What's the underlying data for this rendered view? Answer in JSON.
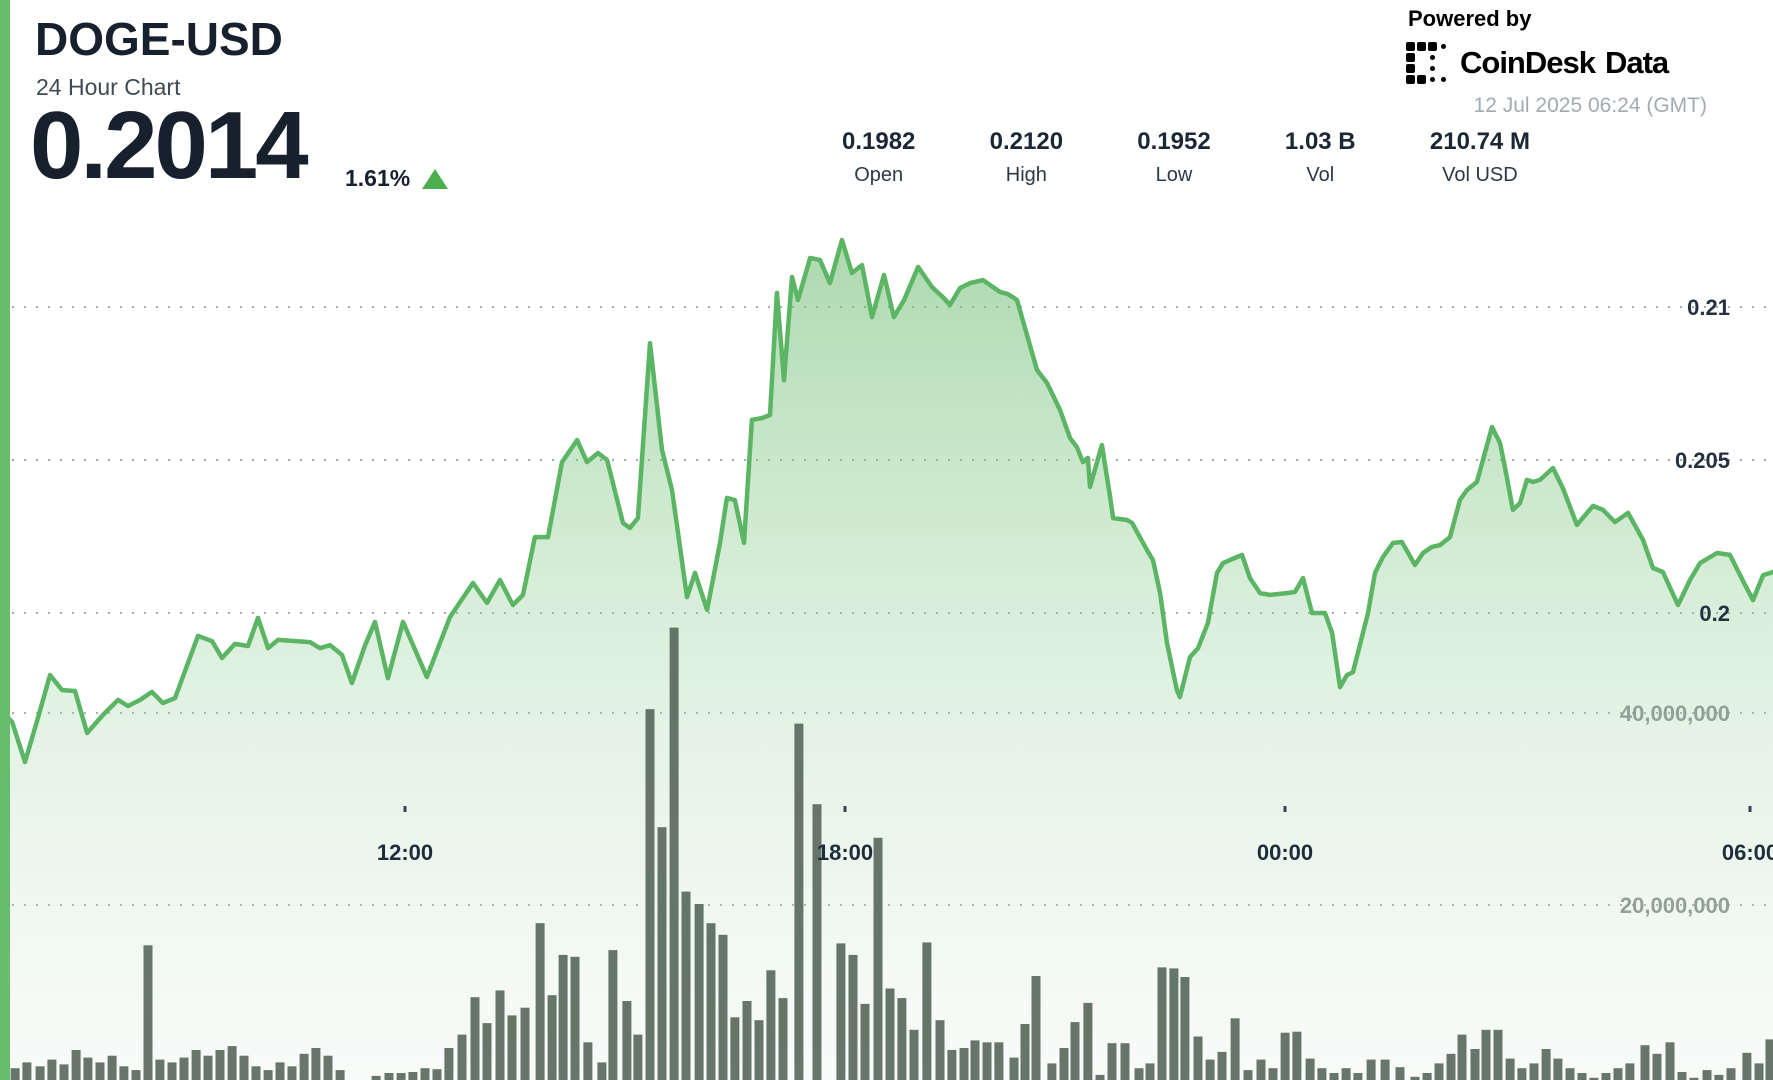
{
  "header": {
    "symbol": "DOGE-USD",
    "subtitle": "24 Hour Chart",
    "price": "0.2014",
    "change_pct": "1.61%",
    "change_direction": "up",
    "accent_color": "#67bd6a",
    "up_color": "#4caf50"
  },
  "branding": {
    "powered_by": "Powered by",
    "logo_name": "CoinDesk",
    "logo_suffix": "Data",
    "timestamp": "12 Jul 2025 06:24 (GMT)"
  },
  "stats": [
    {
      "key": "open",
      "value": "0.1982",
      "label": "Open"
    },
    {
      "key": "high",
      "value": "0.2120",
      "label": "High"
    },
    {
      "key": "low",
      "value": "0.1952",
      "label": "Low"
    },
    {
      "key": "vol",
      "value": "1.03 B",
      "label": "Vol"
    },
    {
      "key": "vol-usd",
      "value": "210.74 M",
      "label": "Vol USD"
    }
  ],
  "chart_data": [
    {
      "type": "area",
      "name": "price",
      "title": "DOGE-USD 24 Hour Chart",
      "x_window": "24 hours ending 12 Jul 2025 06:24 GMT",
      "x_tick_labels": [
        "12:00",
        "18:00",
        "00:00",
        "06:00"
      ],
      "y_ticks": [
        0.21,
        0.205,
        0.2
      ],
      "ylim": [
        0.1945,
        0.2125
      ],
      "grid": "dotted",
      "legend": "none",
      "line_color": "#5cb564",
      "points": [
        [
          0.0,
          0.19683
        ],
        [
          0.0068,
          0.19644
        ],
        [
          0.0141,
          0.19513
        ],
        [
          0.0214,
          0.19657
        ],
        [
          0.0282,
          0.19797
        ],
        [
          0.035,
          0.19748
        ],
        [
          0.0423,
          0.19745
        ],
        [
          0.0491,
          0.19608
        ],
        [
          0.0581,
          0.19667
        ],
        [
          0.0666,
          0.19716
        ],
        [
          0.0722,
          0.19696
        ],
        [
          0.079,
          0.19716
        ],
        [
          0.0857,
          0.19742
        ],
        [
          0.0919,
          0.19706
        ],
        [
          0.0987,
          0.19722
        ],
        [
          0.1117,
          0.19925
        ],
        [
          0.1196,
          0.19908
        ],
        [
          0.1252,
          0.19853
        ],
        [
          0.1325,
          0.19899
        ],
        [
          0.1399,
          0.19892
        ],
        [
          0.1455,
          0.19984
        ],
        [
          0.1512,
          0.19885
        ],
        [
          0.1568,
          0.19912
        ],
        [
          0.1748,
          0.19905
        ],
        [
          0.1805,
          0.19885
        ],
        [
          0.1861,
          0.19895
        ],
        [
          0.1929,
          0.19863
        ],
        [
          0.1985,
          0.19771
        ],
        [
          0.2059,
          0.19895
        ],
        [
          0.2115,
          0.19971
        ],
        [
          0.2188,
          0.19787
        ],
        [
          0.2273,
          0.19971
        ],
        [
          0.2408,
          0.19791
        ],
        [
          0.2538,
          0.19987
        ],
        [
          0.2668,
          0.20098
        ],
        [
          0.2747,
          0.20033
        ],
        [
          0.282,
          0.20108
        ],
        [
          0.2893,
          0.20026
        ],
        [
          0.295,
          0.20059
        ],
        [
          0.3017,
          0.20248
        ],
        [
          0.3091,
          0.20248
        ],
        [
          0.317,
          0.20493
        ],
        [
          0.3255,
          0.20565
        ],
        [
          0.3311,
          0.20493
        ],
        [
          0.3373,
          0.20523
        ],
        [
          0.3424,
          0.205
        ],
        [
          0.3514,
          0.20294
        ],
        [
          0.3553,
          0.20278
        ],
        [
          0.3598,
          0.2031
        ],
        [
          0.3666,
          0.20882
        ],
        [
          0.3734,
          0.20533
        ],
        [
          0.379,
          0.20402
        ],
        [
          0.3875,
          0.20052
        ],
        [
          0.392,
          0.20131
        ],
        [
          0.3988,
          0.2001
        ],
        [
          0.4061,
          0.20229
        ],
        [
          0.41,
          0.20376
        ],
        [
          0.4145,
          0.20369
        ],
        [
          0.4196,
          0.20229
        ],
        [
          0.4241,
          0.20631
        ],
        [
          0.4298,
          0.20637
        ],
        [
          0.4343,
          0.20647
        ],
        [
          0.4382,
          0.21046
        ],
        [
          0.4422,
          0.20761
        ],
        [
          0.4467,
          0.21098
        ],
        [
          0.4501,
          0.21023
        ],
        [
          0.4569,
          0.2116
        ],
        [
          0.4625,
          0.21154
        ],
        [
          0.4681,
          0.21078
        ],
        [
          0.4749,
          0.21219
        ],
        [
          0.4805,
          0.21111
        ],
        [
          0.4862,
          0.21137
        ],
        [
          0.4918,
          0.20967
        ],
        [
          0.4986,
          0.21105
        ],
        [
          0.5042,
          0.20967
        ],
        [
          0.5099,
          0.21023
        ],
        [
          0.5178,
          0.21131
        ],
        [
          0.5257,
          0.21065
        ],
        [
          0.5324,
          0.21029
        ],
        [
          0.5358,
          0.21007
        ],
        [
          0.5415,
          0.21062
        ],
        [
          0.5471,
          0.21078
        ],
        [
          0.5544,
          0.21088
        ],
        [
          0.564,
          0.21049
        ],
        [
          0.5685,
          0.21042
        ],
        [
          0.5736,
          0.21023
        ],
        [
          0.5849,
          0.20794
        ],
        [
          0.5905,
          0.20752
        ],
        [
          0.5979,
          0.20663
        ],
        [
          0.6035,
          0.20572
        ],
        [
          0.6074,
          0.20542
        ],
        [
          0.6108,
          0.20493
        ],
        [
          0.6136,
          0.20507
        ],
        [
          0.6148,
          0.20412
        ],
        [
          0.6215,
          0.20549
        ],
        [
          0.6261,
          0.20379
        ],
        [
          0.6278,
          0.2031
        ],
        [
          0.6357,
          0.20304
        ],
        [
          0.6385,
          0.20294
        ],
        [
          0.6469,
          0.20206
        ],
        [
          0.6503,
          0.20173
        ],
        [
          0.6543,
          0.20065
        ],
        [
          0.6582,
          0.19902
        ],
        [
          0.6638,
          0.19748
        ],
        [
          0.6655,
          0.19725
        ],
        [
          0.6712,
          0.19856
        ],
        [
          0.6757,
          0.19885
        ],
        [
          0.6813,
          0.19967
        ],
        [
          0.6864,
          0.20131
        ],
        [
          0.6898,
          0.20163
        ],
        [
          0.6977,
          0.20183
        ],
        [
          0.7005,
          0.2019
        ],
        [
          0.705,
          0.20114
        ],
        [
          0.7107,
          0.20065
        ],
        [
          0.7163,
          0.20059
        ],
        [
          0.7259,
          0.20065
        ],
        [
          0.7304,
          0.20069
        ],
        [
          0.7349,
          0.20114
        ],
        [
          0.74,
          0.2
        ],
        [
          0.7473,
          0.2
        ],
        [
          0.7513,
          0.19935
        ],
        [
          0.7558,
          0.19758
        ],
        [
          0.7597,
          0.19797
        ],
        [
          0.7631,
          0.19807
        ],
        [
          0.7716,
          0.2
        ],
        [
          0.7755,
          0.20131
        ],
        [
          0.78,
          0.20183
        ],
        [
          0.7857,
          0.20229
        ],
        [
          0.7907,
          0.20232
        ],
        [
          0.7981,
          0.20157
        ],
        [
          0.8026,
          0.20196
        ],
        [
          0.8076,
          0.20216
        ],
        [
          0.8122,
          0.20222
        ],
        [
          0.8178,
          0.20248
        ],
        [
          0.8234,
          0.20369
        ],
        [
          0.8274,
          0.20402
        ],
        [
          0.833,
          0.20428
        ],
        [
          0.8415,
          0.20608
        ],
        [
          0.846,
          0.20556
        ],
        [
          0.8488,
          0.20477
        ],
        [
          0.8533,
          0.20337
        ],
        [
          0.8573,
          0.20359
        ],
        [
          0.8612,
          0.20435
        ],
        [
          0.8646,
          0.20428
        ],
        [
          0.8686,
          0.20435
        ],
        [
          0.8759,
          0.20474
        ],
        [
          0.8815,
          0.20408
        ],
        [
          0.8894,
          0.20288
        ],
        [
          0.8985,
          0.2035
        ],
        [
          0.9041,
          0.20337
        ],
        [
          0.9109,
          0.20297
        ],
        [
          0.9182,
          0.20327
        ],
        [
          0.9267,
          0.20239
        ],
        [
          0.9323,
          0.20147
        ],
        [
          0.9379,
          0.20134
        ],
        [
          0.9464,
          0.20026
        ],
        [
          0.9532,
          0.20108
        ],
        [
          0.9588,
          0.20163
        ],
        [
          0.9684,
          0.20196
        ],
        [
          0.9757,
          0.2019
        ],
        [
          0.9842,
          0.20092
        ],
        [
          0.9887,
          0.20042
        ],
        [
          0.9944,
          0.20124
        ],
        [
          1.0,
          0.20134
        ]
      ]
    },
    {
      "type": "bar",
      "name": "volume",
      "units": "millions",
      "y_ticks": [
        40000000,
        20000000
      ],
      "bar_color": "#5b6a5e",
      "bars": [
        [
          0.0017,
          5.5
        ],
        [
          0.0085,
          3.0
        ],
        [
          0.0152,
          3.6
        ],
        [
          0.0226,
          3.2
        ],
        [
          0.0293,
          3.9
        ],
        [
          0.0361,
          3.4
        ],
        [
          0.0429,
          4.9
        ],
        [
          0.0496,
          4.1
        ],
        [
          0.0564,
          3.6
        ],
        [
          0.0632,
          4.3
        ],
        [
          0.0699,
          3.2
        ],
        [
          0.0767,
          2.8
        ],
        [
          0.0835,
          15.8
        ],
        [
          0.0902,
          3.9
        ],
        [
          0.097,
          3.6
        ],
        [
          0.1038,
          4.1
        ],
        [
          0.1106,
          4.9
        ],
        [
          0.1173,
          4.3
        ],
        [
          0.1241,
          4.9
        ],
        [
          0.1309,
          5.3
        ],
        [
          0.1376,
          4.3
        ],
        [
          0.1444,
          3.2
        ],
        [
          0.1512,
          2.8
        ],
        [
          0.1579,
          3.6
        ],
        [
          0.1647,
          3.2
        ],
        [
          0.1715,
          4.5
        ],
        [
          0.1782,
          5.1
        ],
        [
          0.185,
          4.3
        ],
        [
          0.1918,
          2.8
        ],
        [
          0.1985,
          1.0
        ],
        [
          0.2053,
          1.1
        ],
        [
          0.2121,
          2.2
        ],
        [
          0.2194,
          2.5
        ],
        [
          0.2262,
          2.5
        ],
        [
          0.2329,
          2.6
        ],
        [
          0.2397,
          3.0
        ],
        [
          0.2465,
          2.9
        ],
        [
          0.2532,
          5.1
        ],
        [
          0.2606,
          6.5
        ],
        [
          0.2679,
          10.4
        ],
        [
          0.2747,
          7.7
        ],
        [
          0.282,
          11.1
        ],
        [
          0.2888,
          8.5
        ],
        [
          0.2961,
          9.3
        ],
        [
          0.3046,
          18.1
        ],
        [
          0.3114,
          10.6
        ],
        [
          0.3176,
          14.8
        ],
        [
          0.3243,
          14.6
        ],
        [
          0.3316,
          5.7
        ],
        [
          0.3395,
          3.6
        ],
        [
          0.3457,
          15.3
        ],
        [
          0.3536,
          10.0
        ],
        [
          0.3598,
          6.5
        ],
        [
          0.3666,
          40.4
        ],
        [
          0.3734,
          28.1
        ],
        [
          0.3802,
          48.9
        ],
        [
          0.3869,
          21.4
        ],
        [
          0.3943,
          20.1
        ],
        [
          0.401,
          18.1
        ],
        [
          0.4078,
          16.9
        ],
        [
          0.4145,
          8.3
        ],
        [
          0.4213,
          10.0
        ],
        [
          0.4281,
          8.0
        ],
        [
          0.4348,
          13.2
        ],
        [
          0.4416,
          10.3
        ],
        [
          0.4506,
          38.9
        ],
        [
          0.4608,
          30.5
        ],
        [
          0.4743,
          16.0
        ],
        [
          0.4811,
          14.8
        ],
        [
          0.4879,
          9.7
        ],
        [
          0.4952,
          27.0
        ],
        [
          0.502,
          11.3
        ],
        [
          0.5087,
          10.3
        ],
        [
          0.5155,
          7.0
        ],
        [
          0.5228,
          16.1
        ],
        [
          0.5302,
          8.0
        ],
        [
          0.5369,
          4.9
        ],
        [
          0.5437,
          5.1
        ],
        [
          0.5499,
          5.9
        ],
        [
          0.5567,
          5.7
        ],
        [
          0.5634,
          5.7
        ],
        [
          0.5719,
          4.1
        ],
        [
          0.5781,
          7.6
        ],
        [
          0.5843,
          12.6
        ],
        [
          0.5933,
          3.5
        ],
        [
          0.6001,
          5.1
        ],
        [
          0.6063,
          7.8
        ],
        [
          0.6136,
          9.8
        ],
        [
          0.6204,
          2.3
        ],
        [
          0.6272,
          5.6
        ],
        [
          0.6345,
          5.6
        ],
        [
          0.6424,
          3.0
        ],
        [
          0.6486,
          3.5
        ],
        [
          0.6554,
          13.5
        ],
        [
          0.6621,
          13.4
        ],
        [
          0.6683,
          12.5
        ],
        [
          0.6757,
          6.3
        ],
        [
          0.6825,
          3.9
        ],
        [
          0.6892,
          4.7
        ],
        [
          0.6966,
          8.2
        ],
        [
          0.7039,
          2.8
        ],
        [
          0.7112,
          3.9
        ],
        [
          0.718,
          3.0
        ],
        [
          0.7248,
          6.7
        ],
        [
          0.7315,
          6.8
        ],
        [
          0.7389,
          4.0
        ],
        [
          0.7456,
          3.0
        ],
        [
          0.7524,
          2.5
        ],
        [
          0.7592,
          3.0
        ],
        [
          0.7659,
          2.5
        ],
        [
          0.7733,
          3.9
        ],
        [
          0.7812,
          3.9
        ],
        [
          0.7896,
          3.1
        ],
        [
          0.7981,
          2.1
        ],
        [
          0.8049,
          2.5
        ],
        [
          0.8116,
          3.5
        ],
        [
          0.8184,
          4.5
        ],
        [
          0.8246,
          6.5
        ],
        [
          0.8319,
          5.0
        ],
        [
          0.8381,
          7.0
        ],
        [
          0.8449,
          7.0
        ],
        [
          0.8517,
          4.0
        ],
        [
          0.8584,
          3.0
        ],
        [
          0.8652,
          3.5
        ],
        [
          0.872,
          5.0
        ],
        [
          0.8787,
          4.0
        ],
        [
          0.8855,
          3.0
        ],
        [
          0.8923,
          2.5
        ],
        [
          0.899,
          2.0
        ],
        [
          0.9058,
          2.5
        ],
        [
          0.9126,
          3.0
        ],
        [
          0.9193,
          3.5
        ],
        [
          0.9278,
          5.4
        ],
        [
          0.9346,
          4.5
        ],
        [
          0.9419,
          5.7
        ],
        [
          0.9487,
          2.6
        ],
        [
          0.9554,
          2.0
        ],
        [
          0.9628,
          2.8
        ],
        [
          0.9695,
          2.3
        ],
        [
          0.9763,
          3.0
        ],
        [
          0.9853,
          4.6
        ],
        [
          0.9921,
          3.5
        ],
        [
          0.9983,
          6.0
        ]
      ]
    }
  ]
}
